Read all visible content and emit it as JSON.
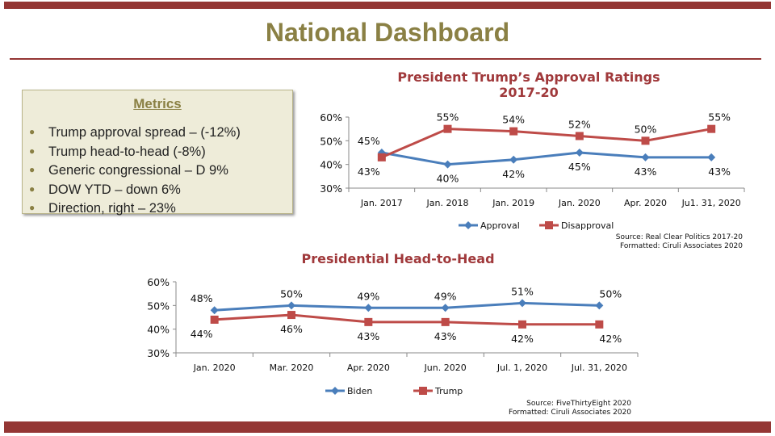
{
  "header": {
    "title": "National Dashboard"
  },
  "metrics": {
    "heading": "Metrics",
    "items": [
      "Trump approval spread – (-12%)",
      "Trump head-to-head (-8%)",
      "Generic congressional – D 9%",
      "DOW YTD – down 6%",
      "Direction, right – 23%"
    ]
  },
  "colors": {
    "brand": "#943634",
    "blue": "#4a7ebb",
    "red": "#be4b48",
    "olive": "#8a8044"
  },
  "chart_data": [
    {
      "type": "line",
      "title": [
        "President Trump’s Approval Ratings",
        "2017-20"
      ],
      "categories": [
        "Jan. 2017",
        "Jan. 2018",
        "Jan. 2019",
        "Jan. 2020",
        "Apr. 2020",
        "Jul. 31, 2020"
      ],
      "category_labels": [
        "Jan. 2017",
        "Jan. 2018",
        "Jan. 2019",
        "Jan. 2020",
        "Apr. 2020",
        "Ju1. 31, 2020"
      ],
      "series": [
        {
          "name": "Approval",
          "values": [
            45,
            40,
            42,
            45,
            43,
            43
          ],
          "marker": "diamond"
        },
        {
          "name": "Disapproval",
          "values": [
            43,
            55,
            54,
            52,
            50,
            55
          ],
          "marker": "square"
        }
      ],
      "ylim": [
        30,
        60
      ],
      "yticks": [
        "30%",
        "40%",
        "50%",
        "60%"
      ],
      "legend": "bottom",
      "source": [
        "Source: Real Clear Politics 2017-20",
        "Formatted: Ciruli Associates 2020"
      ]
    },
    {
      "type": "line",
      "title": [
        "Presidential  Head-to-Head"
      ],
      "categories": [
        "Jan. 2020",
        "Mar. 2020",
        "Apr. 2020",
        "Jun. 2020",
        "Jul. 1, 2020",
        "Jul. 31, 2020"
      ],
      "category_labels": [
        "Jan. 2020",
        "Mar. 2020",
        "Apr. 2020",
        "Jun. 2020",
        "Jul. 1, 2020",
        "Jul. 31, 2020"
      ],
      "series": [
        {
          "name": "Biden",
          "values": [
            48,
            50,
            49,
            49,
            51,
            50
          ],
          "marker": "diamond"
        },
        {
          "name": "Trump",
          "values": [
            44,
            46,
            43,
            43,
            42,
            42
          ],
          "marker": "square"
        }
      ],
      "ylim": [
        30,
        60
      ],
      "yticks": [
        "30%",
        "40%",
        "50%",
        "60%"
      ],
      "legend": "bottom",
      "source": [
        "Source: FiveThirtyEight 2020",
        "Formatted: Ciruli Associates 2020"
      ]
    }
  ]
}
